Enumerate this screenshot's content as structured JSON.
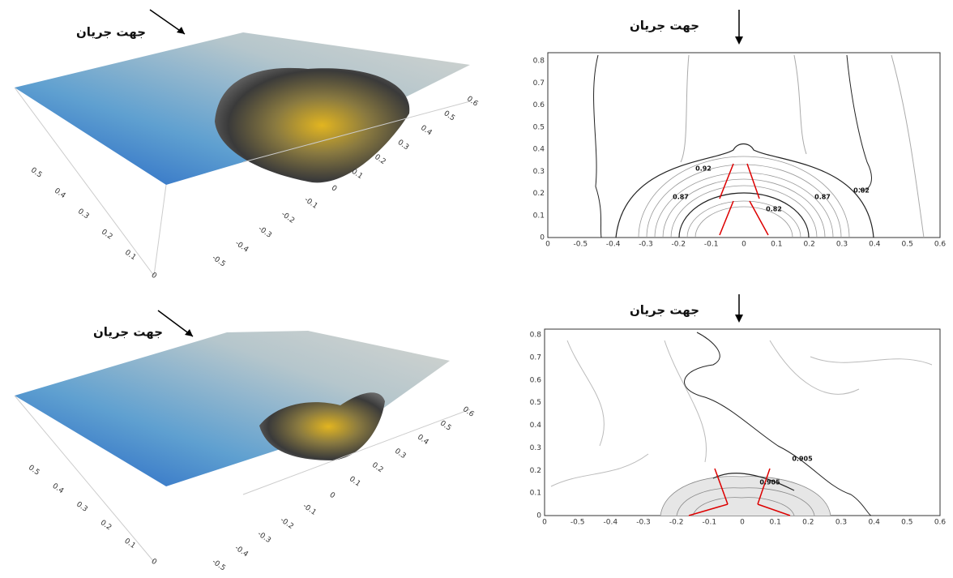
{
  "surface_top": {
    "flow_label": "جهت جریان",
    "left_axis": [
      "0",
      "0.1",
      "0.2",
      "0.3",
      "0.4",
      "0.5"
    ],
    "bottom_axis": [
      "-0.5",
      "-0.4",
      "-0.3",
      "-0.2",
      "-0.1",
      "0",
      "0.1",
      "0.2",
      "0.3",
      "0.4",
      "0.5",
      "0.6"
    ]
  },
  "contour_top": {
    "flow_label": "جهت جریان",
    "x_ticks": [
      "0",
      "-0.5",
      "-0.4",
      "-0.3",
      "-0.2",
      "-0.1",
      "0",
      "0.1",
      "0.2",
      "0.3",
      "0.4",
      "0.5",
      "0.6"
    ],
    "y_ticks": [
      "0",
      "0.1",
      "0.2",
      "0.3",
      "0.4",
      "0.5",
      "0.6",
      "0.7",
      "0.8"
    ],
    "contour_labels": [
      "0.92",
      "0.87",
      "0.87",
      "0.82",
      "0.82"
    ]
  },
  "surface_bottom": {
    "flow_label": "جهت جریان",
    "left_axis": [
      "0",
      "0.1",
      "0.2",
      "0.3",
      "0.4",
      "0.5"
    ],
    "bottom_axis": [
      "-0.5",
      "-0.4",
      "-0.3",
      "-0.2",
      "-0.1",
      "0",
      "0.1",
      "0.2",
      "0.3",
      "0.4",
      "0.5",
      "0.6"
    ]
  },
  "contour_bottom": {
    "flow_label": "جهت جریان",
    "x_ticks": [
      "0",
      "-0.5",
      "-0.4",
      "-0.3",
      "-0.2",
      "-0.1",
      "0",
      "0.1",
      "0.2",
      "0.3",
      "0.4",
      "0.5",
      "0.6"
    ],
    "y_ticks": [
      "0",
      "0.1",
      "0.2",
      "0.3",
      "0.4",
      "0.5",
      "0.6",
      "0.7",
      "0.8"
    ],
    "contour_labels": [
      "0.905",
      "0.905"
    ]
  }
}
